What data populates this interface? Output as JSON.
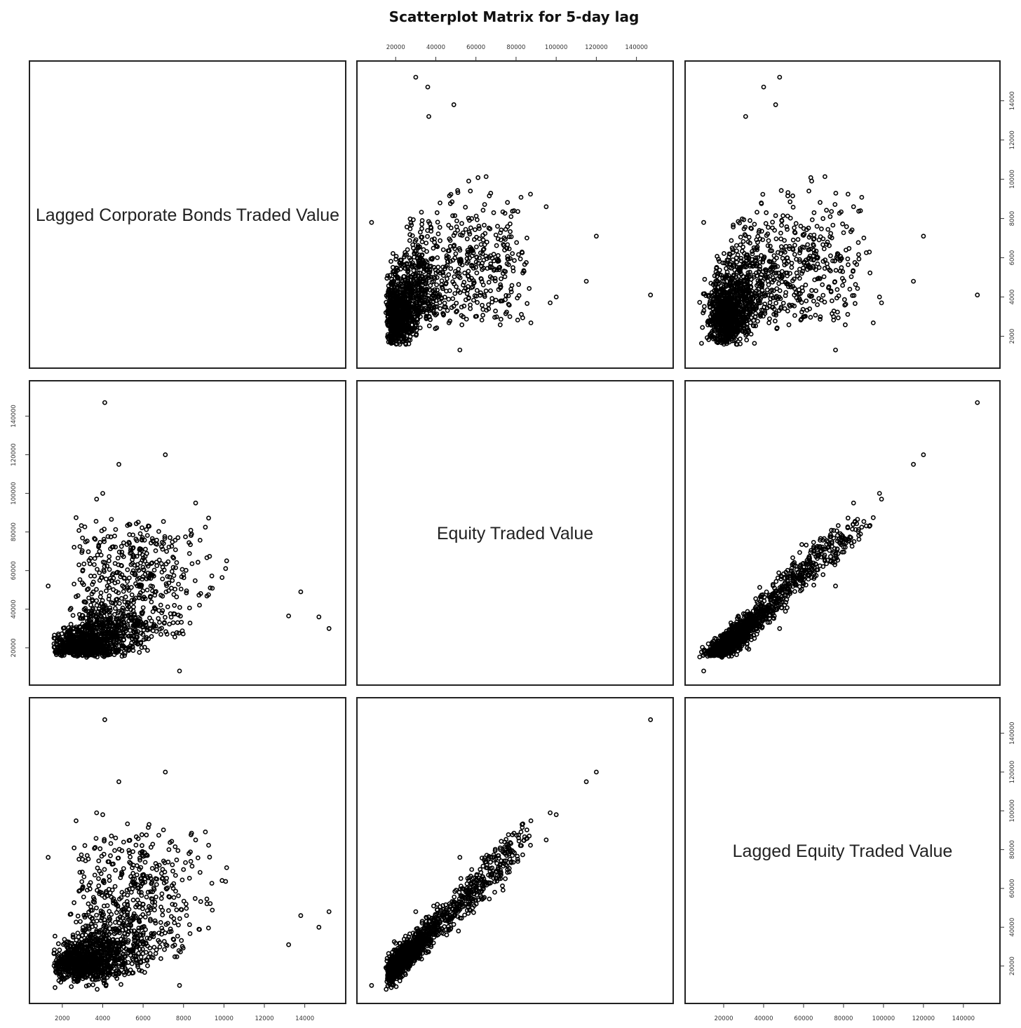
{
  "chart_data": {
    "type": "scatter-matrix",
    "title": "Scatterplot Matrix for 5-day lag",
    "variables": [
      {
        "key": "bonds",
        "label": "Lagged Corporate Bonds Traded Value",
        "range": [
          1000,
          15400
        ],
        "ticks": [
          2000,
          4000,
          6000,
          8000,
          10000,
          12000,
          14000
        ]
      },
      {
        "key": "equity",
        "label": "Equity Traded Value",
        "range": [
          7000,
          152000
        ],
        "ticks": [
          20000,
          40000,
          60000,
          80000,
          100000,
          120000,
          140000
        ]
      },
      {
        "key": "lagged_equity",
        "label": "Lagged Equity Traded Value",
        "range": [
          7000,
          152000
        ],
        "ticks": [
          20000,
          40000,
          60000,
          80000,
          100000,
          120000,
          140000
        ]
      }
    ],
    "axes": {
      "top": "equity",
      "right": "bonds",
      "left": "equity",
      "bottom_left": "bonds",
      "bottom_right": "lagged_equity"
    },
    "n_points": 1500,
    "outliers": [
      {
        "bonds": 4100,
        "equity": 147000,
        "lagged_equity": 147000
      },
      {
        "bonds": 7100,
        "equity": 120000,
        "lagged_equity": 120000
      },
      {
        "bonds": 4800,
        "equity": 115000,
        "lagged_equity": 115000
      },
      {
        "bonds": 4000,
        "equity": 100000,
        "lagged_equity": 98000
      },
      {
        "bonds": 3700,
        "equity": 97000,
        "lagged_equity": 99000
      },
      {
        "bonds": 1300,
        "equity": 52000,
        "lagged_equity": 76000
      },
      {
        "bonds": 13800,
        "equity": 49000,
        "lagged_equity": 46000
      },
      {
        "bonds": 14700,
        "equity": 36000,
        "lagged_equity": 40000
      },
      {
        "bonds": 15200,
        "equity": 30000,
        "lagged_equity": 48000
      },
      {
        "bonds": 7800,
        "equity": 8000,
        "lagged_equity": 10000
      },
      {
        "bonds": 8600,
        "equity": 95000,
        "lagged_equity": 85000
      },
      {
        "bonds": 13200,
        "equity": 36500,
        "lagged_equity": 31000
      }
    ],
    "grid": false
  }
}
